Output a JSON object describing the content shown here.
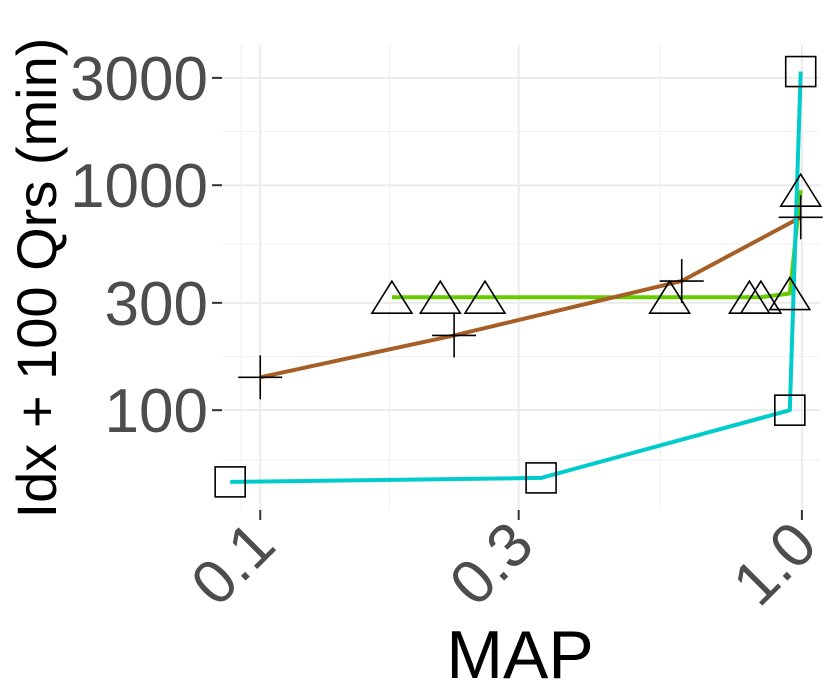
{
  "chart_data": {
    "type": "line",
    "xlabel": "MAP",
    "ylabel": "Idx + 100 Qrs (min)",
    "x_scale": "log",
    "y_scale": "log",
    "xlim": [
      0.085,
      1.08
    ],
    "ylim": [
      36,
      4200
    ],
    "x_ticks": [
      0.1,
      0.3,
      1.0
    ],
    "x_tick_labels": [
      "0.1",
      "0.3",
      "1.0"
    ],
    "y_ticks": [
      100,
      300,
      1000,
      3000
    ],
    "y_tick_labels": [
      "100",
      "300",
      "1000",
      "3000"
    ],
    "grid": true,
    "legend": "none",
    "series": [
      {
        "color": "#66cc00",
        "marker": "triangle",
        "x": [
          0.175,
          0.215,
          0.26,
          0.57,
          0.8,
          0.84,
          0.95,
          0.995
        ],
        "y": [
          318,
          318,
          318,
          318,
          318,
          318,
          330,
          950
        ]
      },
      {
        "color": "#a65f26",
        "marker": "plus",
        "x": [
          0.1,
          0.228,
          0.6,
          0.995
        ],
        "y": [
          140,
          215,
          375,
          720
        ]
      },
      {
        "color": "#00cccc",
        "marker": "square",
        "x": [
          0.088,
          0.33,
          0.95,
          0.995
        ],
        "y": [
          48,
          50,
          100,
          3200
        ]
      }
    ]
  }
}
